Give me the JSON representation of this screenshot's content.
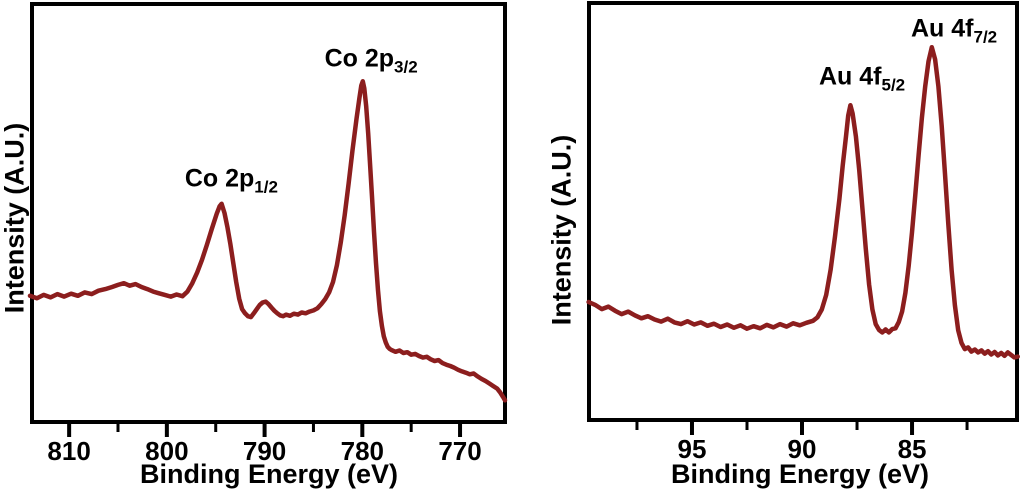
{
  "figure": {
    "background": "#ffffff",
    "axis_color": "#000000",
    "line_color": "#8c1e1e"
  },
  "chart_data": [
    {
      "type": "line",
      "name": "co-2p-xps-spectrum",
      "xlabel": "Binding Energy (eV)",
      "ylabel": "Intensity (A.U.)",
      "x_reversed": true,
      "xlim": [
        813.8,
        765.4
      ],
      "ylim": [
        0,
        100
      ],
      "x_ticks": [
        810,
        800,
        790,
        780,
        770
      ],
      "x_minor_ticks": [
        805,
        795,
        785,
        775
      ],
      "grid": false,
      "legend": "none",
      "line_color": "#8c1e1e",
      "annotations": [
        {
          "base": "Co 2p",
          "sub": "1/2",
          "peak_ev": 794.5,
          "label_x_ev": 793.4,
          "label_y_pct": 58.1
        },
        {
          "base": "Co 2p",
          "sub": "3/2",
          "peak_ev": 780.0,
          "label_x_ev": 779.1,
          "label_y_pct": 86.8
        }
      ],
      "series": [
        {
          "name": "Co 2p",
          "points": [
            [
              814.0,
              30.2
            ],
            [
              813.3,
              29.6
            ],
            [
              812.6,
              30.4
            ],
            [
              811.9,
              29.8
            ],
            [
              811.2,
              30.6
            ],
            [
              810.5,
              30.0
            ],
            [
              809.8,
              30.7
            ],
            [
              809.1,
              30.2
            ],
            [
              808.4,
              31.0
            ],
            [
              807.7,
              30.6
            ],
            [
              807.0,
              31.4
            ],
            [
              806.3,
              31.8
            ],
            [
              805.6,
              32.3
            ],
            [
              805.0,
              32.8
            ],
            [
              804.4,
              33.2
            ],
            [
              803.8,
              32.6
            ],
            [
              803.2,
              33.0
            ],
            [
              802.6,
              32.3
            ],
            [
              802.0,
              31.8
            ],
            [
              801.4,
              31.2
            ],
            [
              800.8,
              30.8
            ],
            [
              800.2,
              30.4
            ],
            [
              799.6,
              30.0
            ],
            [
              799.0,
              30.5
            ],
            [
              798.4,
              30.1
            ],
            [
              797.9,
              31.2
            ],
            [
              797.4,
              33.2
            ],
            [
              796.9,
              35.8
            ],
            [
              796.4,
              38.8
            ],
            [
              795.9,
              42.4
            ],
            [
              795.4,
              46.2
            ],
            [
              794.9,
              49.8
            ],
            [
              794.6,
              51.6
            ],
            [
              794.4,
              52.2
            ],
            [
              794.1,
              50.0
            ],
            [
              793.8,
              46.5
            ],
            [
              793.5,
              42.5
            ],
            [
              793.2,
              38.0
            ],
            [
              792.9,
              33.5
            ],
            [
              792.6,
              29.5
            ],
            [
              792.3,
              27.0
            ],
            [
              792.0,
              26.0
            ],
            [
              791.7,
              25.3
            ],
            [
              791.4,
              25.1
            ],
            [
              791.1,
              26.0
            ],
            [
              790.8,
              27.0
            ],
            [
              790.5,
              28.0
            ],
            [
              790.2,
              28.6
            ],
            [
              789.9,
              28.8
            ],
            [
              789.6,
              28.2
            ],
            [
              789.3,
              27.4
            ],
            [
              789.0,
              26.6
            ],
            [
              788.7,
              26.0
            ],
            [
              788.4,
              25.5
            ],
            [
              788.1,
              25.3
            ],
            [
              787.8,
              25.7
            ],
            [
              787.4,
              25.4
            ],
            [
              787.0,
              25.9
            ],
            [
              786.6,
              25.7
            ],
            [
              786.2,
              26.2
            ],
            [
              785.8,
              26.0
            ],
            [
              785.4,
              26.4
            ],
            [
              785.0,
              26.7
            ],
            [
              784.6,
              27.2
            ],
            [
              784.2,
              28.2
            ],
            [
              783.8,
              29.4
            ],
            [
              783.4,
              31.0
            ],
            [
              783.0,
              33.5
            ],
            [
              782.6,
              37.5
            ],
            [
              782.2,
              43.0
            ],
            [
              781.8,
              49.5
            ],
            [
              781.4,
              57.0
            ],
            [
              781.0,
              65.0
            ],
            [
              780.6,
              72.5
            ],
            [
              780.3,
              77.5
            ],
            [
              780.1,
              80.5
            ],
            [
              779.95,
              81.5
            ],
            [
              779.8,
              79.8
            ],
            [
              779.6,
              75.5
            ],
            [
              779.4,
              69.0
            ],
            [
              779.2,
              61.5
            ],
            [
              779.0,
              53.5
            ],
            [
              778.8,
              45.5
            ],
            [
              778.6,
              38.0
            ],
            [
              778.4,
              31.5
            ],
            [
              778.2,
              26.5
            ],
            [
              778.0,
              23.0
            ],
            [
              777.8,
              20.5
            ],
            [
              777.6,
              19.0
            ],
            [
              777.4,
              18.0
            ],
            [
              777.2,
              17.5
            ],
            [
              777.0,
              17.2
            ],
            [
              776.6,
              16.8
            ],
            [
              776.2,
              17.1
            ],
            [
              775.8,
              16.5
            ],
            [
              775.4,
              16.7
            ],
            [
              775.0,
              16.1
            ],
            [
              774.6,
              16.3
            ],
            [
              774.2,
              15.8
            ],
            [
              773.8,
              15.4
            ],
            [
              773.4,
              15.6
            ],
            [
              773.0,
              15.0
            ],
            [
              772.6,
              14.6
            ],
            [
              772.2,
              14.8
            ],
            [
              771.8,
              14.1
            ],
            [
              771.4,
              13.7
            ],
            [
              771.0,
              13.4
            ],
            [
              770.6,
              13.0
            ],
            [
              770.2,
              12.5
            ],
            [
              769.8,
              12.1
            ],
            [
              769.4,
              11.8
            ],
            [
              769.0,
              11.4
            ],
            [
              768.6,
              11.6
            ],
            [
              768.2,
              10.9
            ],
            [
              767.8,
              10.3
            ],
            [
              767.4,
              9.8
            ],
            [
              767.0,
              9.2
            ],
            [
              766.6,
              8.6
            ],
            [
              766.2,
              8.0
            ],
            [
              765.9,
              7.1
            ],
            [
              765.6,
              6.0
            ],
            [
              765.4,
              5.2
            ]
          ]
        }
      ]
    },
    {
      "type": "line",
      "name": "au-4f-xps-spectrum",
      "xlabel": "Binding Energy (eV)",
      "ylabel": "Intensity (A.U.)",
      "x_reversed": true,
      "xlim": [
        99.68,
        80.23
      ],
      "ylim": [
        0,
        100
      ],
      "x_ticks": [
        95,
        90,
        85
      ],
      "x_minor_ticks": [
        97.5,
        92.5,
        87.5,
        82.5
      ],
      "grid": false,
      "legend": "none",
      "line_color": "#8c1e1e",
      "annotations": [
        {
          "base": "Au 4f",
          "sub": "5/2",
          "peak_ev": 87.8,
          "label_x_ev": 87.27,
          "label_y_pct": 82.3
        },
        {
          "base": "Au 4f",
          "sub": "7/2",
          "peak_ev": 84.1,
          "label_x_ev": 83.09,
          "label_y_pct": 93.8
        }
      ],
      "series": [
        {
          "name": "Au 4f",
          "points": [
            [
              99.7,
              28.3
            ],
            [
              99.4,
              27.6
            ],
            [
              99.1,
              26.6
            ],
            [
              98.8,
              27.2
            ],
            [
              98.5,
              26.2
            ],
            [
              98.2,
              25.4
            ],
            [
              97.9,
              26.0
            ],
            [
              97.6,
              25.1
            ],
            [
              97.3,
              24.4
            ],
            [
              97.0,
              24.9
            ],
            [
              96.7,
              24.1
            ],
            [
              96.4,
              23.6
            ],
            [
              96.1,
              24.3
            ],
            [
              95.8,
              23.4
            ],
            [
              95.5,
              23.0
            ],
            [
              95.2,
              23.7
            ],
            [
              94.9,
              22.9
            ],
            [
              94.6,
              23.4
            ],
            [
              94.3,
              22.6
            ],
            [
              94.0,
              23.1
            ],
            [
              93.7,
              22.3
            ],
            [
              93.4,
              22.9
            ],
            [
              93.1,
              22.1
            ],
            [
              92.8,
              22.7
            ],
            [
              92.5,
              21.9
            ],
            [
              92.2,
              22.5
            ],
            [
              91.9,
              22.0
            ],
            [
              91.6,
              22.8
            ],
            [
              91.3,
              22.2
            ],
            [
              91.0,
              23.0
            ],
            [
              90.7,
              22.4
            ],
            [
              90.4,
              23.2
            ],
            [
              90.1,
              22.7
            ],
            [
              89.8,
              23.3
            ],
            [
              89.5,
              23.8
            ],
            [
              89.3,
              24.6
            ],
            [
              89.1,
              26.5
            ],
            [
              88.9,
              30.0
            ],
            [
              88.7,
              36.0
            ],
            [
              88.5,
              44.0
            ],
            [
              88.3,
              53.0
            ],
            [
              88.15,
              61.0
            ],
            [
              88.0,
              68.0
            ],
            [
              87.9,
              73.0
            ],
            [
              87.8,
              75.5
            ],
            [
              87.7,
              73.5
            ],
            [
              87.55,
              68.0
            ],
            [
              87.4,
              60.0
            ],
            [
              87.25,
              50.5
            ],
            [
              87.1,
              41.0
            ],
            [
              86.95,
              32.5
            ],
            [
              86.8,
              26.5
            ],
            [
              86.65,
              23.0
            ],
            [
              86.5,
              21.6
            ],
            [
              86.35,
              21.0
            ],
            [
              86.2,
              21.7
            ],
            [
              86.05,
              21.0
            ],
            [
              85.9,
              21.8
            ],
            [
              85.75,
              22.0
            ],
            [
              85.6,
              23.5
            ],
            [
              85.45,
              26.0
            ],
            [
              85.3,
              30.5
            ],
            [
              85.15,
              37.0
            ],
            [
              85.0,
              45.0
            ],
            [
              84.85,
              54.0
            ],
            [
              84.7,
              63.5
            ],
            [
              84.55,
              72.5
            ],
            [
              84.4,
              80.0
            ],
            [
              84.25,
              86.0
            ],
            [
              84.1,
              89.4
            ],
            [
              83.95,
              86.5
            ],
            [
              83.8,
              80.0
            ],
            [
              83.65,
              70.5
            ],
            [
              83.5,
              59.0
            ],
            [
              83.35,
              47.0
            ],
            [
              83.2,
              36.0
            ],
            [
              83.05,
              27.5
            ],
            [
              82.9,
              21.5
            ],
            [
              82.75,
              18.5
            ],
            [
              82.6,
              17.0
            ],
            [
              82.45,
              17.4
            ],
            [
              82.3,
              16.4
            ],
            [
              82.15,
              16.9
            ],
            [
              82.0,
              16.2
            ],
            [
              81.85,
              16.7
            ],
            [
              81.7,
              15.9
            ],
            [
              81.55,
              16.5
            ],
            [
              81.4,
              15.7
            ],
            [
              81.25,
              16.3
            ],
            [
              81.1,
              15.5
            ],
            [
              80.95,
              16.1
            ],
            [
              80.8,
              15.4
            ],
            [
              80.65,
              16.2
            ],
            [
              80.5,
              15.6
            ],
            [
              80.35,
              15.0
            ],
            [
              80.2,
              15.2
            ]
          ]
        }
      ]
    }
  ]
}
